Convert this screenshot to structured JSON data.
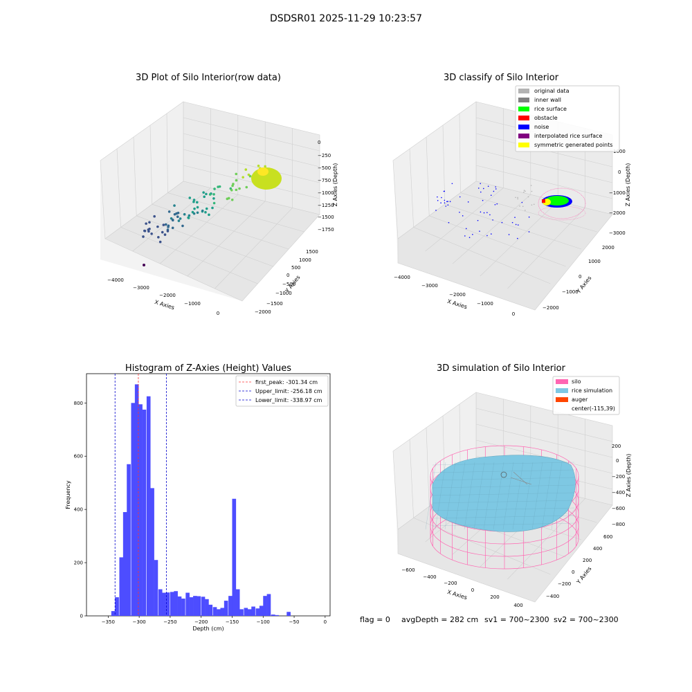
{
  "figure_title": "DSDSR01 2025-11-29 10:23:57",
  "status": {
    "flag": "flag = 0",
    "avg_depth": "avgDepth = 282 cm",
    "sv1": "sv1 = 700~2300",
    "sv2": "sv2 = 700~2300"
  },
  "colors": {
    "hist_bar": "#4d4dff",
    "first_peak": "#ff3333",
    "limit_line": "#0000cc",
    "silo": "#ff66b2",
    "rice_simulation": "#7ec8e3",
    "auger": "#ff4500",
    "rice_surface": "#00ff00",
    "noise": "#0000ff",
    "obstacle": "#ff0000",
    "original_data": "#b3b3b3",
    "inner_wall": "#808080",
    "interpolated": "#800080",
    "symmetric": "#ffff00"
  },
  "chart_data": [
    {
      "type": "scatter",
      "title": "3D Plot of Silo Interior(row data)",
      "xlabel": "X Axies",
      "ylabel": "Y Axies",
      "zlabel": "Z Axies (Depth)",
      "x_ticks": [
        "−4000",
        "−3000",
        "−2000",
        "−1000",
        "0"
      ],
      "y_ticks": [
        "−2000",
        "−1500",
        "−1000",
        "−500",
        "0",
        "500",
        "1000",
        "1500"
      ],
      "z_ticks": [
        "0",
        "−250",
        "−500",
        "−750",
        "−1000",
        "−1250",
        "−1500",
        "−1750"
      ]
    },
    {
      "type": "scatter",
      "title": "3D classify of Silo Interior",
      "xlabel": "X Axies",
      "ylabel": "Y Axies",
      "zlabel": "Z Axies (Depth)",
      "x_ticks": [
        "−4000",
        "−3000",
        "−2000",
        "−1000",
        "0"
      ],
      "y_ticks": [
        "−2000",
        "−1000",
        "0",
        "1000",
        "2000"
      ],
      "z_ticks": [
        "1000",
        "0",
        "−1000",
        "−2000",
        "−3000"
      ],
      "legend": [
        "original data",
        "inner wall",
        "rice surface",
        "obstacle",
        "noise",
        "interpolated rice surface",
        "symmetric generated points"
      ],
      "legend_position": "top-right"
    },
    {
      "type": "bar",
      "title": "Histogram of Z-Axies (Height) Values",
      "xlabel": "Depth (cm)",
      "ylabel": "Frequency",
      "xlim": [
        -385,
        8
      ],
      "ylim": [
        0,
        910
      ],
      "x_ticks": [
        -350,
        -300,
        -250,
        -200,
        -150,
        -100,
        -50,
        0
      ],
      "y_ticks": [
        0,
        200,
        400,
        600,
        800
      ],
      "bin_width": 6.3,
      "bins": [
        [
          -345,
          18
        ],
        [
          -339,
          70
        ],
        [
          -332,
          220
        ],
        [
          -326,
          390
        ],
        [
          -320,
          570
        ],
        [
          -313,
          800
        ],
        [
          -307,
          870
        ],
        [
          -301,
          795
        ],
        [
          -295,
          775
        ],
        [
          -288,
          825
        ],
        [
          -282,
          480
        ],
        [
          -276,
          210
        ],
        [
          -269,
          100
        ],
        [
          -263,
          87
        ],
        [
          -257,
          88
        ],
        [
          -250,
          90
        ],
        [
          -244,
          93
        ],
        [
          -238,
          73
        ],
        [
          -232,
          65
        ],
        [
          -225,
          87
        ],
        [
          -219,
          70
        ],
        [
          -213,
          75
        ],
        [
          -207,
          74
        ],
        [
          -200,
          72
        ],
        [
          -194,
          63
        ],
        [
          -188,
          42
        ],
        [
          -181,
          33
        ],
        [
          -175,
          25
        ],
        [
          -169,
          30
        ],
        [
          -163,
          57
        ],
        [
          -156,
          75
        ],
        [
          -150,
          440
        ],
        [
          -144,
          100
        ],
        [
          -138,
          25
        ],
        [
          -131,
          30
        ],
        [
          -125,
          25
        ],
        [
          -119,
          35
        ],
        [
          -112,
          28
        ],
        [
          -106,
          38
        ],
        [
          -100,
          75
        ],
        [
          -94,
          82
        ],
        [
          -87,
          5
        ],
        [
          -81,
          3
        ],
        [
          -62,
          15
        ]
      ],
      "lines": [
        {
          "name": "first_peak: -301.34 cm",
          "x": -301.34,
          "color": "#ff3333"
        },
        {
          "name": "Upper_limit: -256.18 cm",
          "x": -256.18,
          "color": "#0000cc"
        },
        {
          "name": "Lower_limit: -338.97 cm",
          "x": -338.97,
          "color": "#0000cc"
        }
      ],
      "legend_position": "top-right"
    },
    {
      "type": "surface",
      "title": "3D simulation of Silo Interior",
      "xlabel": "X Axies",
      "ylabel": "Y Axies",
      "zlabel": "Z Axies (Depth)",
      "x_ticks": [
        "−600",
        "−400",
        "−200",
        "0",
        "200",
        "400"
      ],
      "y_ticks": [
        "−400",
        "−200",
        "0",
        "200",
        "400",
        "600"
      ],
      "z_ticks": [
        "200",
        "0",
        "−200",
        "−400",
        "−600",
        "−800"
      ],
      "legend": [
        "silo",
        "rice simulation",
        "auger",
        "center(-115,39)"
      ],
      "legend_position": "top-right"
    }
  ]
}
